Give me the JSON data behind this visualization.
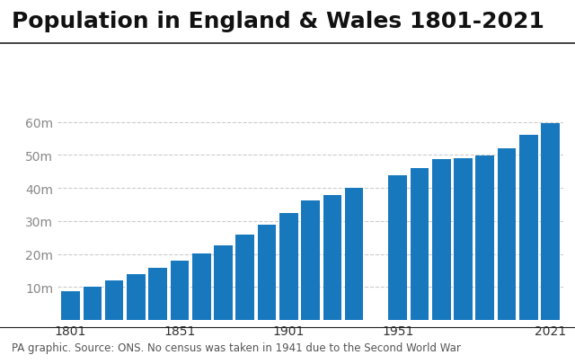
{
  "title": "Population in England & Wales 1801-2021",
  "bar_color": "#1878be",
  "background_color": "#ffffff",
  "footer": "PA graphic. Source: ONS. No census was taken in 1941 due to the Second World War",
  "years": [
    1801,
    1811,
    1821,
    1831,
    1841,
    1851,
    1861,
    1871,
    1881,
    1891,
    1901,
    1911,
    1921,
    1931,
    1951,
    1961,
    1971,
    1981,
    1991,
    2001,
    2011,
    2021
  ],
  "populations": [
    8.9,
    10.2,
    12.0,
    13.9,
    15.9,
    17.9,
    20.1,
    22.7,
    26.0,
    29.0,
    32.5,
    36.1,
    37.9,
    40.0,
    43.8,
    46.1,
    48.7,
    49.0,
    49.9,
    52.0,
    56.1,
    59.6
  ],
  "yticks": [
    10,
    20,
    30,
    40,
    50,
    60
  ],
  "ytick_labels": [
    "10m",
    "20m",
    "30m",
    "40m",
    "50m",
    "60m"
  ],
  "xtick_years": [
    1801,
    1851,
    1901,
    1951,
    2021
  ],
  "ylim": [
    0,
    64
  ],
  "title_fontsize": 18,
  "footer_fontsize": 8.5,
  "tick_fontsize": 10,
  "bar_width": 8.5
}
